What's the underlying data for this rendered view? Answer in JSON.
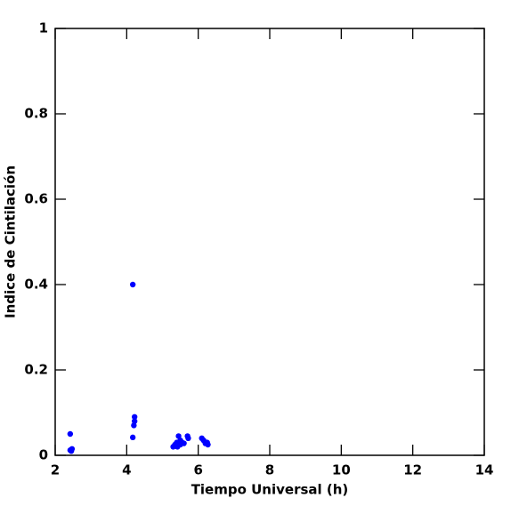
{
  "chart_data": {
    "type": "scatter",
    "xlabel": "Tiempo Universal (h)",
    "ylabel": "Indice de Cintilación",
    "color": "#0000ff",
    "x": [
      2.42,
      2.42,
      2.47,
      2.45,
      4.17,
      4.22,
      4.22,
      4.2,
      4.17,
      5.3,
      5.35,
      5.4,
      5.45,
      5.5,
      5.55,
      5.6,
      5.7,
      5.72,
      5.35,
      5.42,
      5.5,
      6.1,
      6.15,
      6.25,
      6.27,
      6.2
    ],
    "y": [
      0.05,
      0.012,
      0.015,
      0.01,
      0.4,
      0.09,
      0.08,
      0.07,
      0.042,
      0.02,
      0.025,
      0.03,
      0.045,
      0.035,
      0.03,
      0.028,
      0.045,
      0.04,
      0.022,
      0.02,
      0.025,
      0.04,
      0.035,
      0.03,
      0.025,
      0.028
    ],
    "xlim": [
      2,
      14
    ],
    "xticks": [
      2,
      4,
      6,
      8,
      10,
      12,
      14
    ],
    "ylim": [
      0,
      1
    ],
    "yticks": [
      0,
      0.2,
      0.4,
      0.6,
      0.8,
      1
    ]
  }
}
